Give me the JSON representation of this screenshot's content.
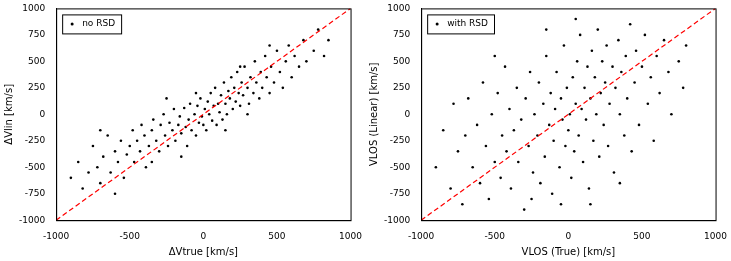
{
  "chart_data": [
    {
      "type": "scatter",
      "x_label": "ΔVtrue [km/s]",
      "y_label": "ΔVlin [km/s]",
      "xlim": [
        -1000,
        1000
      ],
      "xticks": [
        -1000,
        -500,
        0,
        500,
        1000
      ],
      "ylim": [
        -1000,
        1000
      ],
      "yticks": [
        -1000,
        -750,
        -500,
        -250,
        0,
        250,
        500,
        750,
        1000
      ],
      "grid": false,
      "legend": "upper left",
      "series": [
        {
          "type": "line",
          "color": "#ff0000",
          "line_style": "dashed",
          "x": [
            -1000,
            1000
          ],
          "values": [
            -1000,
            1000
          ]
        },
        {
          "name": "no RSD",
          "type": "scatter",
          "color": "#000000",
          "marker": "circle",
          "x": [
            -900,
            -850,
            -820,
            -780,
            -750,
            -720,
            -700,
            -680,
            -650,
            -630,
            -600,
            -580,
            -560,
            -540,
            -520,
            -500,
            -480,
            -470,
            -450,
            -430,
            -420,
            -400,
            -390,
            -370,
            -350,
            -340,
            -320,
            -300,
            -290,
            -270,
            -260,
            -240,
            -230,
            -210,
            -200,
            -190,
            -170,
            -160,
            -150,
            -130,
            -120,
            -110,
            -100,
            -90,
            -80,
            -60,
            -50,
            -40,
            -30,
            -20,
            -10,
            0,
            10,
            20,
            30,
            40,
            50,
            60,
            70,
            80,
            90,
            100,
            110,
            120,
            130,
            140,
            150,
            160,
            170,
            180,
            190,
            200,
            210,
            220,
            230,
            240,
            250,
            260,
            270,
            280,
            300,
            310,
            320,
            340,
            350,
            360,
            380,
            390,
            400,
            420,
            430,
            450,
            460,
            480,
            500,
            520,
            540,
            560,
            580,
            600,
            620,
            650,
            680,
            700,
            750,
            780,
            820,
            850,
            -600,
            -350,
            -150,
            -50,
            150,
            300,
            450,
            -700,
            250,
            -250
          ],
          "values": [
            -600,
            -450,
            -700,
            -550,
            -300,
            -500,
            -650,
            -400,
            -200,
            -550,
            -350,
            -450,
            -250,
            -600,
            -380,
            -300,
            -150,
            -450,
            -250,
            -350,
            -100,
            -200,
            -500,
            -300,
            -150,
            -50,
            -250,
            -350,
            -100,
            0,
            -200,
            -300,
            -80,
            -150,
            50,
            -250,
            -100,
            -20,
            -180,
            60,
            -120,
            -300,
            -50,
            100,
            -150,
            0,
            -200,
            80,
            -80,
            150,
            -20,
            -100,
            50,
            -150,
            120,
            0,
            200,
            -60,
            80,
            250,
            -100,
            100,
            20,
            180,
            -50,
            300,
            100,
            0,
            220,
            150,
            350,
            50,
            250,
            120,
            400,
            200,
            80,
            300,
            180,
            450,
            250,
            100,
            350,
            200,
            500,
            300,
            150,
            400,
            250,
            550,
            350,
            200,
            450,
            300,
            600,
            400,
            250,
            500,
            650,
            350,
            550,
            450,
            700,
            500,
            600,
            800,
            550,
            700,
            -750,
            -450,
            -400,
            200,
            -150,
            0,
            650,
            -150,
            450,
            150
          ]
        }
      ]
    },
    {
      "type": "scatter",
      "x_label": "VLOS (True) [km/s]",
      "y_label": "VLOS (Linear) [km/s]",
      "xlim": [
        -1000,
        1000
      ],
      "xticks": [
        -1000,
        -500,
        0,
        500,
        1000
      ],
      "ylim": [
        -1000,
        1000
      ],
      "yticks": [
        -1000,
        -750,
        -500,
        -250,
        0,
        250,
        500,
        750,
        1000
      ],
      "grid": false,
      "legend": "upper left",
      "series": [
        {
          "type": "line",
          "color": "#ff0000",
          "line_style": "dashed",
          "x": [
            -1000,
            1000
          ],
          "values": [
            -1000,
            1000
          ]
        },
        {
          "name": "with RSD",
          "type": "scatter",
          "color": "#000000",
          "marker": "circle",
          "x": [
            -900,
            -850,
            -800,
            -780,
            -750,
            -720,
            -700,
            -680,
            -650,
            -620,
            -600,
            -580,
            -560,
            -540,
            -520,
            -500,
            -480,
            -460,
            -450,
            -430,
            -420,
            -400,
            -390,
            -370,
            -350,
            -340,
            -320,
            -300,
            -290,
            -270,
            -260,
            -240,
            -230,
            -210,
            -200,
            -190,
            -170,
            -160,
            -150,
            -130,
            -120,
            -110,
            -100,
            -90,
            -80,
            -60,
            -50,
            -40,
            -30,
            -20,
            -10,
            0,
            10,
            20,
            30,
            40,
            50,
            60,
            70,
            80,
            90,
            100,
            110,
            120,
            130,
            140,
            150,
            160,
            170,
            180,
            190,
            200,
            210,
            220,
            230,
            240,
            250,
            260,
            270,
            280,
            300,
            310,
            320,
            340,
            350,
            360,
            380,
            390,
            400,
            420,
            430,
            450,
            460,
            480,
            500,
            520,
            540,
            560,
            580,
            600,
            620,
            650,
            680,
            700,
            750,
            780,
            800,
            -250,
            -50,
            150,
            350,
            -500,
            -150,
            50
          ],
          "values": [
            -500,
            -150,
            -700,
            100,
            -350,
            -850,
            -200,
            150,
            -500,
            -100,
            -650,
            300,
            -300,
            -800,
            0,
            -450,
            200,
            -600,
            -200,
            450,
            -350,
            50,
            -700,
            -150,
            250,
            -450,
            -50,
            -900,
            150,
            -300,
            400,
            -550,
            0,
            -200,
            300,
            -650,
            100,
            -400,
            550,
            -100,
            200,
            -750,
            -250,
            50,
            400,
            -500,
            150,
            -50,
            650,
            -300,
            250,
            -150,
            0,
            -600,
            350,
            -350,
            100,
            500,
            -200,
            750,
            50,
            -450,
            250,
            -50,
            450,
            -700,
            150,
            600,
            -250,
            350,
            0,
            800,
            -400,
            200,
            500,
            -100,
            300,
            650,
            -300,
            100,
            450,
            -550,
            250,
            700,
            0,
            400,
            -200,
            550,
            150,
            850,
            -350,
            300,
            600,
            -100,
            450,
            750,
            100,
            350,
            -250,
            550,
            200,
            700,
            400,
            0,
            500,
            250,
            650,
            -800,
            -850,
            -850,
            -650,
            550,
            800,
            900
          ]
        }
      ]
    }
  ]
}
